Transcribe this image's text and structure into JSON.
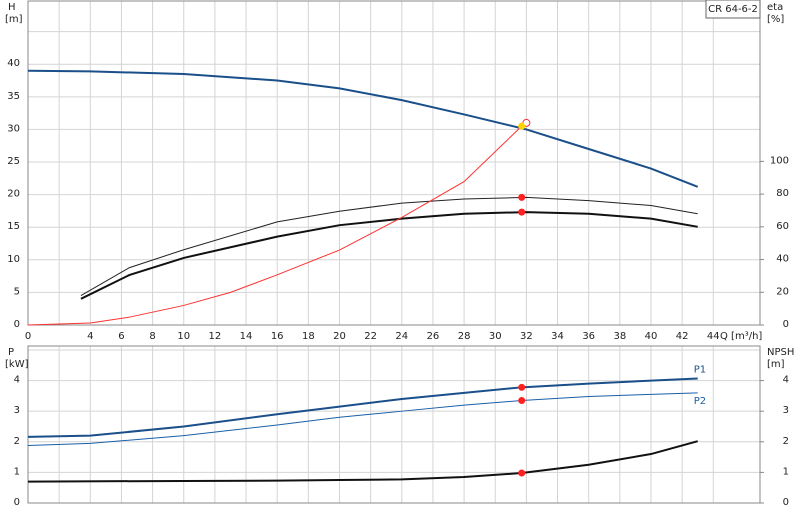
{
  "chart_data": [
    {
      "type": "line",
      "title": "CR 64-6-2",
      "ylabel": "H",
      "yunit": "[m]",
      "y2label": "eta",
      "y2unit": "[%]",
      "xlabel": "Q [m³/h]",
      "xlim": [
        0,
        47
      ],
      "ylim": [
        0,
        49.7
      ],
      "y2lim": [
        0,
        198
      ],
      "xticks": [
        0,
        {
          "value": 2,
          "label": null
        },
        4,
        6,
        8,
        10,
        12,
        14,
        16,
        18,
        20,
        22,
        24,
        26,
        28,
        30,
        32,
        34,
        36,
        38,
        40,
        42,
        44
      ],
      "yticks": [
        0,
        5,
        10,
        15,
        20,
        25,
        30,
        35,
        40,
        {
          "value": 45,
          "label": null
        }
      ],
      "y2ticks": [
        0,
        20,
        40,
        60,
        80,
        100
      ],
      "grid": true,
      "series": [
        {
          "color": "#1a4f8a",
          "line_width": 2,
          "axis": "y",
          "x": [
            0,
            4,
            10,
            16,
            20,
            24,
            28,
            32,
            36,
            40,
            43
          ],
          "values": [
            39,
            38.9,
            38.5,
            37.5,
            36.3,
            34.5,
            32.3,
            30,
            27,
            24,
            21.2
          ]
        },
        {
          "color": "#222222",
          "line_width": 1,
          "axis": "y2",
          "x": [
            3.4,
            6.5,
            10,
            16,
            20,
            24,
            28,
            32,
            36,
            40,
            43
          ],
          "values": [
            18,
            35,
            46,
            63,
            69.5,
            74.5,
            77,
            78,
            76,
            73,
            68
          ]
        },
        {
          "color": "#111111",
          "line_width": 2,
          "axis": "y2",
          "x": [
            3.4,
            6.5,
            10,
            16,
            20,
            24,
            28,
            32,
            36,
            40,
            43
          ],
          "values": [
            16,
            30.5,
            41,
            54,
            61,
            65,
            68,
            69,
            68,
            65,
            60
          ]
        },
        {
          "color": "#ff3030",
          "line_width": 1,
          "axis": "y",
          "x": [
            0,
            4,
            6.5,
            10,
            13,
            16,
            20,
            24,
            28,
            31.7
          ],
          "values": [
            0,
            0.3,
            1.2,
            3,
            5,
            7.7,
            11.5,
            16.5,
            22,
            30.5
          ]
        }
      ],
      "points": [
        {
          "x": 32,
          "y": 31,
          "axis": "y",
          "color": "#ff3030",
          "hollow": true
        },
        {
          "x": 31.7,
          "y": 30.5,
          "axis": "y",
          "color": "#ffd200",
          "hollow": false
        },
        {
          "x": 31.7,
          "y": 78,
          "axis": "y2",
          "color": "#ff2020",
          "hollow": false
        },
        {
          "x": 31.7,
          "y": 69,
          "axis": "y2",
          "color": "#ff2020",
          "hollow": false
        }
      ]
    },
    {
      "type": "line",
      "ylabel": "P",
      "yunit": "[kW]",
      "y2label": "NPSH",
      "y2unit": "[m]",
      "xlim": [
        0,
        47
      ],
      "ylim": [
        0,
        5.13
      ],
      "y2lim": [
        0,
        5.13
      ],
      "xticks": [
        0,
        2,
        4,
        6,
        8,
        10,
        12,
        14,
        16,
        18,
        20,
        22,
        24,
        26,
        28,
        30,
        32,
        34,
        36,
        38,
        40,
        42,
        44
      ],
      "yticks": [
        0,
        1,
        2,
        3,
        4,
        {
          "value": 5,
          "label": null
        }
      ],
      "y2ticks": [
        0,
        1,
        2,
        3,
        4
      ],
      "grid": true,
      "xtick_labels": false,
      "series": [
        {
          "name": "P1",
          "color": "#1a4f8a",
          "line_width": 2,
          "axis": "y",
          "x": [
            0,
            4,
            10,
            16,
            20,
            24,
            28,
            31.7,
            36,
            40,
            43
          ],
          "values": [
            2.16,
            2.2,
            2.5,
            2.9,
            3.15,
            3.4,
            3.6,
            3.78,
            3.9,
            4.0,
            4.07
          ]
        },
        {
          "name": "P2",
          "color": "#1a5fa8",
          "line_width": 1,
          "axis": "y",
          "x": [
            0,
            4,
            10,
            16,
            20,
            24,
            28,
            31.7,
            36,
            40,
            43
          ],
          "values": [
            1.88,
            1.95,
            2.2,
            2.55,
            2.8,
            3.0,
            3.2,
            3.35,
            3.48,
            3.55,
            3.6
          ]
        },
        {
          "color": "#111111",
          "line_width": 2,
          "axis": "y2",
          "x": [
            0,
            10,
            16,
            20,
            24,
            28,
            31.7,
            36,
            40,
            43
          ],
          "values": [
            0.7,
            0.72,
            0.73,
            0.75,
            0.77,
            0.85,
            0.98,
            1.25,
            1.6,
            2.02
          ]
        }
      ],
      "points": [
        {
          "x": 31.7,
          "y": 3.78,
          "axis": "y",
          "color": "#ff2020",
          "hollow": false
        },
        {
          "x": 31.7,
          "y": 3.35,
          "axis": "y",
          "color": "#ff2020",
          "hollow": false
        },
        {
          "x": 31.7,
          "y": 0.98,
          "axis": "y2",
          "color": "#ff2020",
          "hollow": false
        }
      ]
    }
  ]
}
